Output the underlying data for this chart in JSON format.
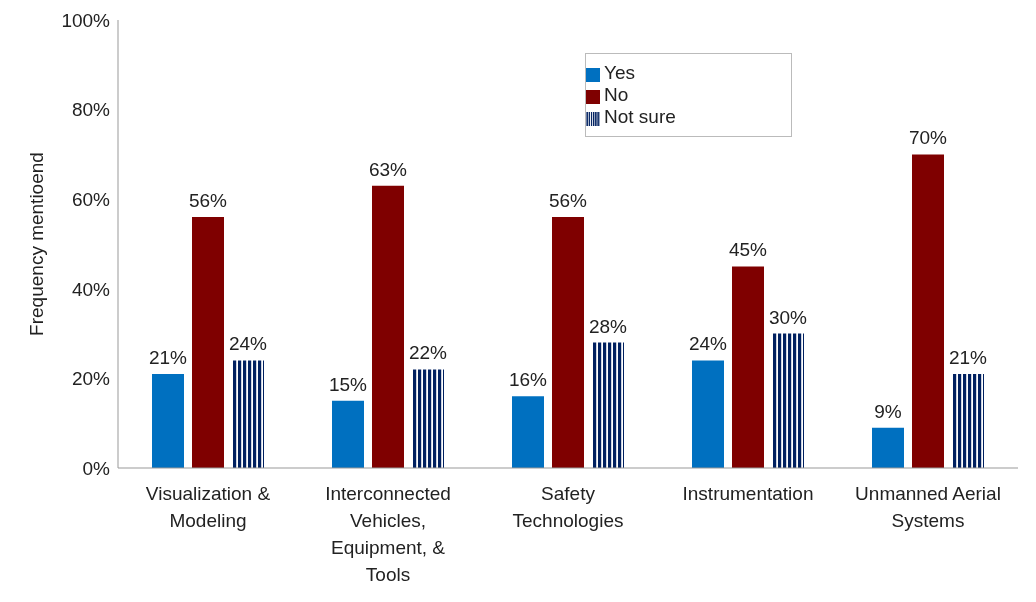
{
  "chart_data": {
    "type": "bar",
    "ylabel": "Frequency mentioend",
    "categories": [
      "Visualization & Modeling",
      "Interconnected Vehicles, Equipment, & Tools",
      "Safety Technologies",
      "Instrumentation",
      "Unmanned Aerial Systems"
    ],
    "series": [
      {
        "name": "Yes",
        "color": "#0070c0",
        "values": [
          21,
          15,
          16,
          24,
          9
        ],
        "value_labels": [
          "21%",
          "15%",
          "16%",
          "24%",
          "9%"
        ]
      },
      {
        "name": "No",
        "color": "#7f0000",
        "values": [
          56,
          63,
          56,
          45,
          70
        ],
        "value_labels": [
          "56%",
          "63%",
          "56%",
          "45%",
          "70%"
        ]
      },
      {
        "name": "Not sure",
        "color": "#002060",
        "values": [
          24,
          22,
          28,
          30,
          21
        ],
        "value_labels": [
          "24%",
          "22%",
          "28%",
          "30%",
          "21%"
        ]
      }
    ],
    "ylim": [
      0,
      100
    ],
    "yticks": [
      {
        "value": 0,
        "label": "0%"
      },
      {
        "value": 20,
        "label": "20%"
      },
      {
        "value": 40,
        "label": "40%"
      },
      {
        "value": 60,
        "label": "60%"
      },
      {
        "value": 80,
        "label": "80%"
      },
      {
        "value": 100,
        "label": "100%"
      }
    ],
    "legend": "top",
    "grid": false
  }
}
